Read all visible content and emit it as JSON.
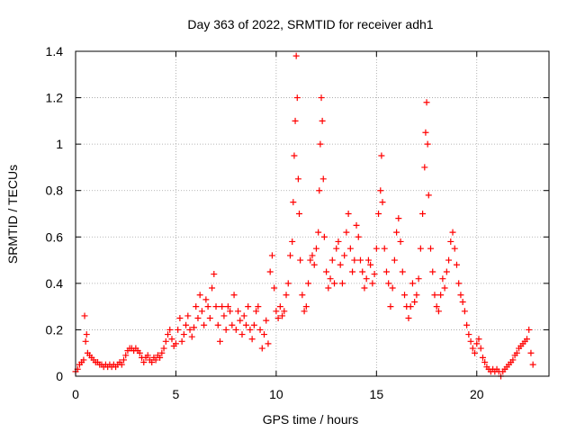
{
  "chart_data": {
    "type": "scatter",
    "title": "Day 363 of 2022, SRMTID for receiver adh1",
    "xlabel": "GPS time / hours",
    "ylabel": "SRMTID / TECUs",
    "xlim": [
      0,
      23.6
    ],
    "ylim": [
      0,
      1.4
    ],
    "xticks": [
      0,
      5,
      10,
      15,
      20
    ],
    "xtick_labels": [
      "0",
      "5",
      "10",
      "15",
      "20"
    ],
    "yticks": [
      0,
      0.2,
      0.4,
      0.6,
      0.8,
      1.0,
      1.2,
      1.4
    ],
    "ytick_labels": [
      "0",
      "0.2",
      "0.4",
      "0.6",
      "0.8",
      "1",
      "1.2",
      "1.4"
    ],
    "grid": true,
    "marker": "+",
    "marker_color": "#ff0000",
    "series": [
      {
        "name": "SRMTID",
        "points": [
          [
            0.0,
            0.02
          ],
          [
            0.1,
            0.03
          ],
          [
            0.2,
            0.05
          ],
          [
            0.3,
            0.06
          ],
          [
            0.4,
            0.07
          ],
          [
            0.45,
            0.26
          ],
          [
            0.5,
            0.15
          ],
          [
            0.55,
            0.18
          ],
          [
            0.6,
            0.1
          ],
          [
            0.7,
            0.09
          ],
          [
            0.8,
            0.08
          ],
          [
            0.9,
            0.07
          ],
          [
            1.0,
            0.06
          ],
          [
            1.1,
            0.06
          ],
          [
            1.2,
            0.05
          ],
          [
            1.3,
            0.05
          ],
          [
            1.4,
            0.04
          ],
          [
            1.5,
            0.05
          ],
          [
            1.6,
            0.04
          ],
          [
            1.7,
            0.05
          ],
          [
            1.8,
            0.04
          ],
          [
            1.9,
            0.05
          ],
          [
            2.0,
            0.04
          ],
          [
            2.1,
            0.05
          ],
          [
            2.2,
            0.06
          ],
          [
            2.3,
            0.05
          ],
          [
            2.4,
            0.07
          ],
          [
            2.5,
            0.09
          ],
          [
            2.6,
            0.11
          ],
          [
            2.7,
            0.12
          ],
          [
            2.8,
            0.12
          ],
          [
            2.9,
            0.11
          ],
          [
            3.0,
            0.12
          ],
          [
            3.1,
            0.11
          ],
          [
            3.2,
            0.1
          ],
          [
            3.3,
            0.08
          ],
          [
            3.4,
            0.06
          ],
          [
            3.5,
            0.08
          ],
          [
            3.6,
            0.09
          ],
          [
            3.7,
            0.07
          ],
          [
            3.8,
            0.06
          ],
          [
            3.9,
            0.08
          ],
          [
            4.0,
            0.07
          ],
          [
            4.1,
            0.09
          ],
          [
            4.2,
            0.08
          ],
          [
            4.3,
            0.1
          ],
          [
            4.4,
            0.12
          ],
          [
            4.5,
            0.15
          ],
          [
            4.6,
            0.18
          ],
          [
            4.7,
            0.2
          ],
          [
            4.8,
            0.16
          ],
          [
            4.9,
            0.13
          ],
          [
            5.0,
            0.14
          ],
          [
            5.1,
            0.2
          ],
          [
            5.2,
            0.25
          ],
          [
            5.3,
            0.15
          ],
          [
            5.4,
            0.18
          ],
          [
            5.5,
            0.22
          ],
          [
            5.6,
            0.26
          ],
          [
            5.7,
            0.2
          ],
          [
            5.8,
            0.17
          ],
          [
            5.9,
            0.21
          ],
          [
            6.0,
            0.3
          ],
          [
            6.1,
            0.25
          ],
          [
            6.2,
            0.35
          ],
          [
            6.3,
            0.28
          ],
          [
            6.4,
            0.22
          ],
          [
            6.5,
            0.33
          ],
          [
            6.6,
            0.3
          ],
          [
            6.7,
            0.25
          ],
          [
            6.8,
            0.38
          ],
          [
            6.9,
            0.44
          ],
          [
            7.0,
            0.3
          ],
          [
            7.1,
            0.22
          ],
          [
            7.2,
            0.15
          ],
          [
            7.3,
            0.3
          ],
          [
            7.4,
            0.26
          ],
          [
            7.5,
            0.2
          ],
          [
            7.6,
            0.3
          ],
          [
            7.7,
            0.28
          ],
          [
            7.8,
            0.22
          ],
          [
            7.9,
            0.35
          ],
          [
            8.0,
            0.2
          ],
          [
            8.1,
            0.28
          ],
          [
            8.2,
            0.24
          ],
          [
            8.3,
            0.18
          ],
          [
            8.4,
            0.26
          ],
          [
            8.5,
            0.22
          ],
          [
            8.6,
            0.3
          ],
          [
            8.7,
            0.2
          ],
          [
            8.8,
            0.16
          ],
          [
            8.9,
            0.22
          ],
          [
            9.0,
            0.28
          ],
          [
            9.1,
            0.3
          ],
          [
            9.2,
            0.2
          ],
          [
            9.3,
            0.12
          ],
          [
            9.4,
            0.18
          ],
          [
            9.5,
            0.24
          ],
          [
            9.6,
            0.14
          ],
          [
            9.7,
            0.45
          ],
          [
            9.8,
            0.52
          ],
          [
            9.9,
            0.38
          ],
          [
            10.0,
            0.28
          ],
          [
            10.1,
            0.25
          ],
          [
            10.2,
            0.3
          ],
          [
            10.3,
            0.26
          ],
          [
            10.4,
            0.28
          ],
          [
            10.5,
            0.35
          ],
          [
            10.6,
            0.4
          ],
          [
            10.7,
            0.52
          ],
          [
            10.8,
            0.58
          ],
          [
            10.85,
            0.75
          ],
          [
            10.9,
            0.95
          ],
          [
            10.95,
            1.1
          ],
          [
            11.0,
            1.38
          ],
          [
            11.05,
            1.2
          ],
          [
            11.1,
            0.85
          ],
          [
            11.15,
            0.7
          ],
          [
            11.2,
            0.5
          ],
          [
            11.3,
            0.35
          ],
          [
            11.4,
            0.28
          ],
          [
            11.5,
            0.3
          ],
          [
            11.6,
            0.4
          ],
          [
            11.7,
            0.5
          ],
          [
            11.8,
            0.52
          ],
          [
            11.9,
            0.48
          ],
          [
            12.0,
            0.55
          ],
          [
            12.1,
            0.62
          ],
          [
            12.15,
            0.8
          ],
          [
            12.2,
            1.0
          ],
          [
            12.25,
            1.2
          ],
          [
            12.3,
            1.1
          ],
          [
            12.35,
            0.85
          ],
          [
            12.4,
            0.6
          ],
          [
            12.5,
            0.45
          ],
          [
            12.6,
            0.38
          ],
          [
            12.7,
            0.42
          ],
          [
            12.8,
            0.5
          ],
          [
            12.9,
            0.4
          ],
          [
            13.0,
            0.55
          ],
          [
            13.1,
            0.58
          ],
          [
            13.2,
            0.48
          ],
          [
            13.3,
            0.4
          ],
          [
            13.4,
            0.52
          ],
          [
            13.5,
            0.62
          ],
          [
            13.6,
            0.7
          ],
          [
            13.7,
            0.55
          ],
          [
            13.8,
            0.45
          ],
          [
            13.9,
            0.5
          ],
          [
            14.0,
            0.65
          ],
          [
            14.1,
            0.6
          ],
          [
            14.2,
            0.5
          ],
          [
            14.3,
            0.45
          ],
          [
            14.4,
            0.38
          ],
          [
            14.5,
            0.42
          ],
          [
            14.6,
            0.5
          ],
          [
            14.7,
            0.48
          ],
          [
            14.8,
            0.4
          ],
          [
            14.9,
            0.44
          ],
          [
            15.0,
            0.55
          ],
          [
            15.1,
            0.7
          ],
          [
            15.2,
            0.8
          ],
          [
            15.25,
            0.95
          ],
          [
            15.3,
            0.75
          ],
          [
            15.4,
            0.55
          ],
          [
            15.5,
            0.45
          ],
          [
            15.6,
            0.4
          ],
          [
            15.7,
            0.3
          ],
          [
            15.8,
            0.38
          ],
          [
            15.9,
            0.5
          ],
          [
            16.0,
            0.62
          ],
          [
            16.1,
            0.68
          ],
          [
            16.2,
            0.58
          ],
          [
            16.3,
            0.45
          ],
          [
            16.4,
            0.35
          ],
          [
            16.5,
            0.3
          ],
          [
            16.6,
            0.25
          ],
          [
            16.7,
            0.3
          ],
          [
            16.8,
            0.4
          ],
          [
            16.9,
            0.32
          ],
          [
            17.0,
            0.35
          ],
          [
            17.1,
            0.42
          ],
          [
            17.2,
            0.55
          ],
          [
            17.3,
            0.7
          ],
          [
            17.4,
            0.9
          ],
          [
            17.45,
            1.05
          ],
          [
            17.5,
            1.18
          ],
          [
            17.55,
            1.0
          ],
          [
            17.6,
            0.78
          ],
          [
            17.7,
            0.55
          ],
          [
            17.8,
            0.45
          ],
          [
            17.9,
            0.35
          ],
          [
            18.0,
            0.3
          ],
          [
            18.1,
            0.28
          ],
          [
            18.2,
            0.35
          ],
          [
            18.3,
            0.42
          ],
          [
            18.4,
            0.38
          ],
          [
            18.5,
            0.45
          ],
          [
            18.6,
            0.5
          ],
          [
            18.7,
            0.58
          ],
          [
            18.8,
            0.62
          ],
          [
            18.9,
            0.55
          ],
          [
            19.0,
            0.48
          ],
          [
            19.1,
            0.4
          ],
          [
            19.2,
            0.35
          ],
          [
            19.3,
            0.32
          ],
          [
            19.4,
            0.28
          ],
          [
            19.5,
            0.22
          ],
          [
            19.6,
            0.18
          ],
          [
            19.7,
            0.15
          ],
          [
            19.8,
            0.12
          ],
          [
            19.9,
            0.1
          ],
          [
            20.0,
            0.14
          ],
          [
            20.1,
            0.16
          ],
          [
            20.2,
            0.12
          ],
          [
            20.3,
            0.08
          ],
          [
            20.4,
            0.06
          ],
          [
            20.5,
            0.04
          ],
          [
            20.6,
            0.03
          ],
          [
            20.7,
            0.02
          ],
          [
            20.8,
            0.03
          ],
          [
            20.9,
            0.02
          ],
          [
            21.0,
            0.03
          ],
          [
            21.1,
            0.02
          ],
          [
            21.2,
            0.0
          ],
          [
            21.3,
            0.02
          ],
          [
            21.4,
            0.03
          ],
          [
            21.5,
            0.04
          ],
          [
            21.6,
            0.05
          ],
          [
            21.7,
            0.06
          ],
          [
            21.8,
            0.07
          ],
          [
            21.9,
            0.09
          ],
          [
            22.0,
            0.1
          ],
          [
            22.1,
            0.12
          ],
          [
            22.2,
            0.13
          ],
          [
            22.3,
            0.14
          ],
          [
            22.4,
            0.15
          ],
          [
            22.5,
            0.16
          ],
          [
            22.6,
            0.2
          ],
          [
            22.7,
            0.1
          ],
          [
            22.8,
            0.05
          ]
        ]
      }
    ]
  }
}
